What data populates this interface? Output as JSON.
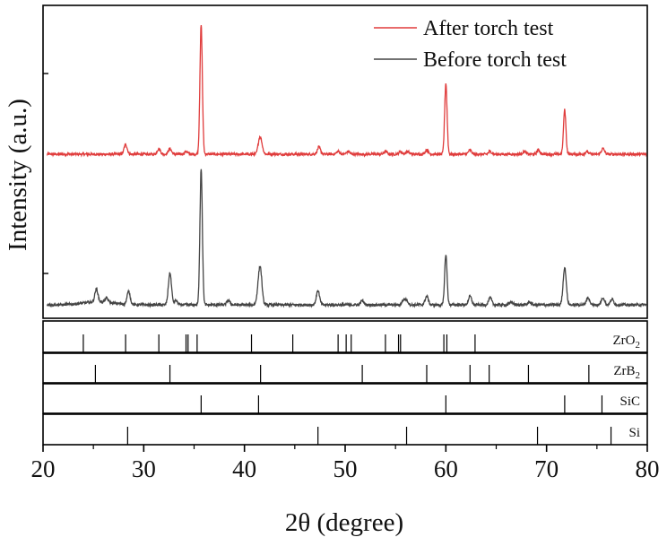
{
  "chart_data": {
    "type": "line",
    "xlabel": "2θ (degree)",
    "ylabel": "Intensity (a.u.)",
    "xlim": [
      20,
      80
    ],
    "x_ticks": [
      "20",
      "30",
      "40",
      "50",
      "60",
      "70",
      "80"
    ],
    "legend_position": "top-right",
    "series": [
      {
        "name": "After torch test",
        "color": "#e03c3c",
        "baseline": 0.07,
        "peaks": [
          [
            28.2,
            0.07
          ],
          [
            31.5,
            0.04
          ],
          [
            32.6,
            0.04
          ],
          [
            34.2,
            0.02
          ],
          [
            35.7,
            0.93
          ],
          [
            41.5,
            0.1
          ],
          [
            41.7,
            0.05
          ],
          [
            47.4,
            0.05
          ],
          [
            49.3,
            0.02
          ],
          [
            50.3,
            0.02
          ],
          [
            54.0,
            0.02
          ],
          [
            55.5,
            0.02
          ],
          [
            56.2,
            0.02
          ],
          [
            58.1,
            0.03
          ],
          [
            60.0,
            0.51
          ],
          [
            62.4,
            0.03
          ],
          [
            64.4,
            0.02
          ],
          [
            67.8,
            0.02
          ],
          [
            69.2,
            0.03
          ],
          [
            71.8,
            0.32
          ],
          [
            74.0,
            0.02
          ],
          [
            75.6,
            0.04
          ]
        ]
      },
      {
        "name": "Before torch test",
        "color": "#444444",
        "baseline": 0.03,
        "peaks": [
          [
            25.3,
            0.09
          ],
          [
            26.3,
            0.03
          ],
          [
            28.5,
            0.09
          ],
          [
            32.6,
            0.22
          ],
          [
            33.2,
            0.03
          ],
          [
            35.7,
            0.95
          ],
          [
            38.4,
            0.03
          ],
          [
            41.4,
            0.11
          ],
          [
            41.6,
            0.21
          ],
          [
            47.3,
            0.1
          ],
          [
            51.7,
            0.03
          ],
          [
            55.8,
            0.03
          ],
          [
            56.1,
            0.03
          ],
          [
            58.1,
            0.06
          ],
          [
            60.0,
            0.35
          ],
          [
            62.4,
            0.06
          ],
          [
            64.4,
            0.05
          ],
          [
            66.5,
            0.02
          ],
          [
            68.3,
            0.02
          ],
          [
            71.8,
            0.26
          ],
          [
            74.1,
            0.05
          ],
          [
            75.6,
            0.05
          ],
          [
            76.5,
            0.04
          ]
        ]
      }
    ],
    "reference_panels": [
      {
        "label": "ZrO",
        "subscript": "2",
        "lines": [
          24.0,
          28.2,
          31.5,
          34.2,
          34.4,
          35.3,
          40.7,
          44.8,
          49.3,
          50.1,
          50.6,
          54.0,
          55.3,
          55.5,
          59.8,
          60.1,
          62.9
        ]
      },
      {
        "label": "ZrB",
        "subscript": "2",
        "lines": [
          25.2,
          32.6,
          41.6,
          51.7,
          58.1,
          62.4,
          64.3,
          68.2,
          74.2
        ]
      },
      {
        "label": "SiC",
        "subscript": "",
        "lines": [
          35.7,
          41.4,
          60.0,
          71.8,
          75.5
        ]
      },
      {
        "label": "Si",
        "subscript": "",
        "lines": [
          28.4,
          47.3,
          56.1,
          69.1,
          76.4
        ]
      }
    ]
  }
}
